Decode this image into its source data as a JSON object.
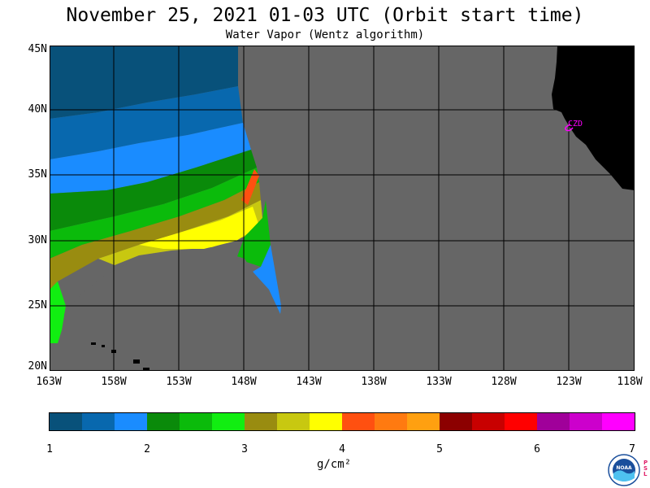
{
  "header": {
    "title": "November 25, 2021  01-03 UTC  (Orbit start time)",
    "subtitle": "Water Vapor (Wentz algorithm)"
  },
  "map": {
    "lat_labels": [
      "45N",
      "40N",
      "35N",
      "30N",
      "25N",
      "20N"
    ],
    "lon_labels": [
      "163W",
      "158W",
      "153W",
      "148W",
      "143W",
      "138W",
      "133W",
      "128W",
      "123W",
      "118W"
    ],
    "station_label": "CZD",
    "colors": {
      "land": "#000000",
      "no_data": "#666666",
      "station": "#ff00ff"
    }
  },
  "colorbar": {
    "tick_labels": [
      "1",
      "2",
      "3",
      "4",
      "5",
      "6",
      "7"
    ],
    "units": "g/cm²",
    "colors": [
      "#08517a",
      "#0868ae",
      "#1a8cff",
      "#0a8a0a",
      "#0bbb0b",
      "#11ee11",
      "#998c10",
      "#c8c810",
      "#ffff00",
      "#ff5010",
      "#ff7a10",
      "#ffa010",
      "#8c0000",
      "#c80000",
      "#ff0000",
      "#a0009a",
      "#cc00cc",
      "#ff00ff"
    ]
  },
  "logo": {
    "text": "NOAA",
    "side_text": "PSL"
  }
}
